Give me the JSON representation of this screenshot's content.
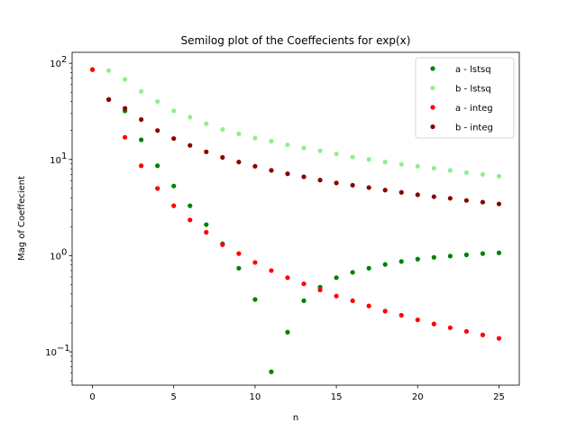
{
  "chart_data": {
    "type": "scatter",
    "title": "Semilog plot of the Coeffecients for exp(x)",
    "xlabel": "n",
    "ylabel": "Mag of Coeffecient",
    "yscale": "log",
    "xlim": [
      -1.25,
      26.25
    ],
    "ylim": [
      0.045,
      130
    ],
    "x_ticks": [
      {
        "value": 0,
        "label": "0"
      },
      {
        "value": 5,
        "label": "5"
      },
      {
        "value": 10,
        "label": "10"
      },
      {
        "value": 15,
        "label": "15"
      },
      {
        "value": 20,
        "label": "20"
      },
      {
        "value": 25,
        "label": "25"
      }
    ],
    "y_ticks": [
      {
        "value": 0.1,
        "base": "10",
        "exp": "−1"
      },
      {
        "value": 1,
        "base": "10",
        "exp": "0"
      },
      {
        "value": 10,
        "base": "10",
        "exp": "1"
      },
      {
        "value": 100,
        "base": "10",
        "exp": "2"
      }
    ],
    "grid": false,
    "legend": "top-right",
    "series": [
      {
        "name": "a - lstsq",
        "color": "#008000",
        "x": [
          0,
          1,
          2,
          3,
          4,
          5,
          6,
          7,
          8,
          9,
          10,
          11,
          12,
          13,
          14,
          15,
          16,
          17,
          18,
          19,
          20,
          21,
          22,
          23,
          24,
          25
        ],
        "y": [
          86,
          42,
          32,
          16,
          8.6,
          5.3,
          3.3,
          2.1,
          1.33,
          0.74,
          0.35,
          0.062,
          0.16,
          0.34,
          0.47,
          0.59,
          0.67,
          0.74,
          0.81,
          0.87,
          0.92,
          0.96,
          0.99,
          1.02,
          1.05,
          1.07
        ]
      },
      {
        "name": "b - lstsq",
        "color": "#90ee90",
        "x": [
          1,
          2,
          3,
          4,
          5,
          6,
          7,
          8,
          9,
          10,
          11,
          12,
          13,
          14,
          15,
          16,
          17,
          18,
          19,
          20,
          21,
          22,
          23,
          24,
          25
        ],
        "y": [
          84,
          68,
          51,
          40,
          32,
          27.5,
          23.5,
          20.5,
          18.5,
          16.7,
          15.5,
          14.2,
          13.2,
          12.3,
          11.4,
          10.6,
          10,
          9.4,
          8.9,
          8.5,
          8.1,
          7.7,
          7.3,
          7,
          6.7
        ]
      },
      {
        "name": "a - integ",
        "color": "#ff0000",
        "x": [
          0,
          1,
          2,
          3,
          4,
          5,
          6,
          7,
          8,
          9,
          10,
          11,
          12,
          13,
          14,
          15,
          16,
          17,
          18,
          19,
          20,
          21,
          22,
          23,
          24,
          25
        ],
        "y": [
          86,
          42,
          17,
          8.6,
          5,
          3.3,
          2.35,
          1.75,
          1.3,
          1.05,
          0.85,
          0.7,
          0.59,
          0.51,
          0.44,
          0.38,
          0.34,
          0.3,
          0.265,
          0.24,
          0.215,
          0.195,
          0.178,
          0.163,
          0.15,
          0.138
        ]
      },
      {
        "name": "b - integ",
        "color": "#8b0000",
        "x": [
          1,
          2,
          3,
          4,
          5,
          6,
          7,
          8,
          9,
          10,
          11,
          12,
          13,
          14,
          15,
          16,
          17,
          18,
          19,
          20,
          21,
          22,
          23,
          24,
          25
        ],
        "y": [
          42,
          34,
          26,
          20,
          16.5,
          14,
          12,
          10.5,
          9.4,
          8.5,
          7.7,
          7.1,
          6.6,
          6.1,
          5.7,
          5.4,
          5.1,
          4.8,
          4.55,
          4.3,
          4.1,
          3.95,
          3.75,
          3.6,
          3.45
        ]
      }
    ]
  }
}
